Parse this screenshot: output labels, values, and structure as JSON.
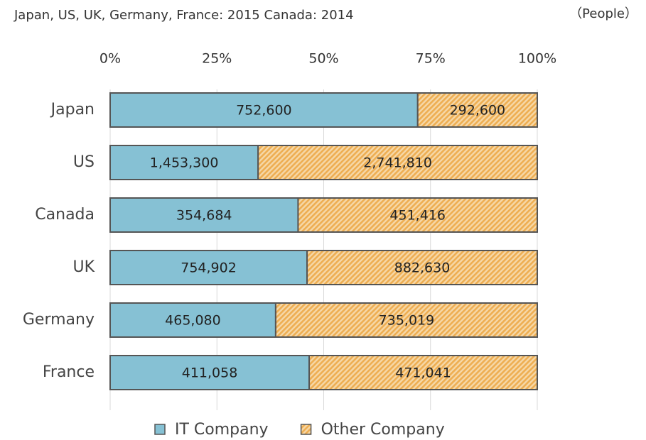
{
  "chart_data": {
    "type": "bar",
    "orientation": "horizontal",
    "stacking": "percent",
    "subtitle": "Japan, US, UK, Germany, France: 2015  Canada: 2014",
    "unit_label": "（People）",
    "categories": [
      "Japan",
      "US",
      "Canada",
      "UK",
      "Germany",
      "France"
    ],
    "series": [
      {
        "name": "IT Company",
        "color": "#86c1d4",
        "pattern": "solid",
        "values": [
          752600,
          1453300,
          354684,
          754902,
          465080,
          411058
        ],
        "value_labels": [
          "752,600",
          "1,453,300",
          "354,684",
          "754,902",
          "465,080",
          "411,058"
        ]
      },
      {
        "name": "Other Company",
        "color": "#eeae52",
        "pattern": "hatch",
        "values": [
          292600,
          2741810,
          451416,
          882630,
          735019,
          471041
        ],
        "value_labels": [
          "292,600",
          "2,741,810",
          "451,416",
          "882,630",
          "735,019",
          "471,041"
        ]
      }
    ],
    "xlim": [
      0,
      100
    ],
    "xticks": [
      {
        "value": 0,
        "label": "0%"
      },
      {
        "value": 25,
        "label": "25%"
      },
      {
        "value": 50,
        "label": "50%"
      },
      {
        "value": 75,
        "label": "75%"
      },
      {
        "value": 100,
        "label": "100%"
      }
    ],
    "grid": true,
    "legend": "bottom"
  }
}
